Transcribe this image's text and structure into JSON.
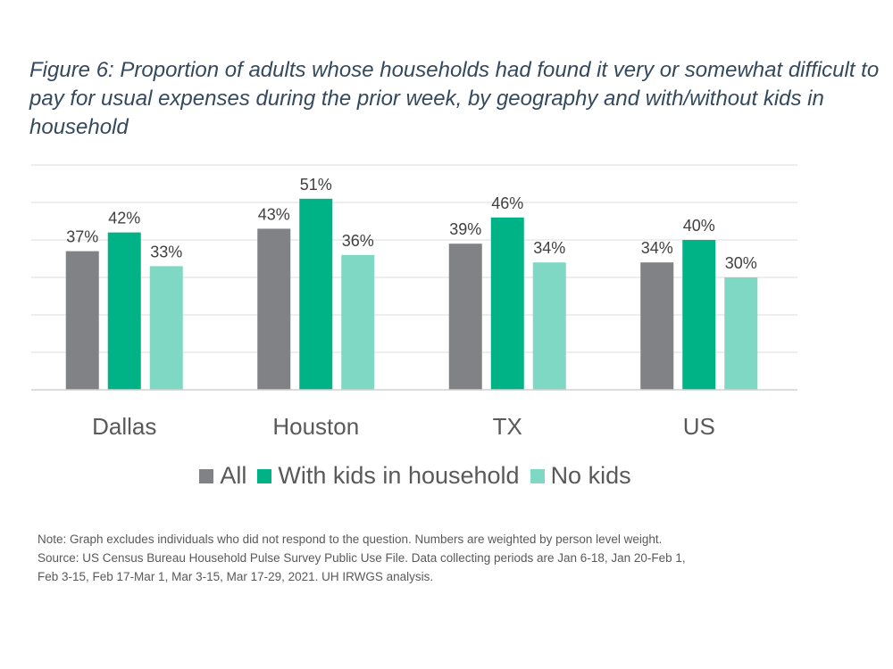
{
  "title": "Figure 6: Proportion of adults whose households had found it very or somewhat difficult to pay for usual expenses during the prior week, by geography and with/without kids in household",
  "chart_data": {
    "type": "bar",
    "categories": [
      "Dallas",
      "Houston",
      "TX",
      "US"
    ],
    "series": [
      {
        "name": "All",
        "color": "#808285",
        "values": [
          37,
          43,
          39,
          34
        ],
        "labels": [
          "37%",
          "43%",
          "39%",
          "34%"
        ]
      },
      {
        "name": "With kids in household",
        "color": "#00b386",
        "values": [
          42,
          51,
          46,
          40
        ],
        "labels": [
          "42%",
          "51%",
          "46%",
          "40%"
        ]
      },
      {
        "name": "No kids",
        "color": "#7fd8c3",
        "values": [
          33,
          36,
          34,
          30
        ],
        "labels": [
          "33%",
          "36%",
          "34%",
          "30%"
        ]
      }
    ],
    "ylim": [
      0,
      60
    ],
    "grid": true,
    "xlabel": "",
    "ylabel": "",
    "legend_position": "bottom"
  },
  "note": {
    "lines": [
      "Note: Graph excludes individuals who did not respond to the question. Numbers are weighted by person level weight.",
      "Source: US Census Bureau Household Pulse Survey Public Use File. Data collecting periods are Jan 6-18, Jan 20-Feb 1,",
      "Feb 3-15, Feb 17-Mar 1, Mar 3-15, Mar 17-29, 2021. UH IRWGS analysis."
    ]
  }
}
